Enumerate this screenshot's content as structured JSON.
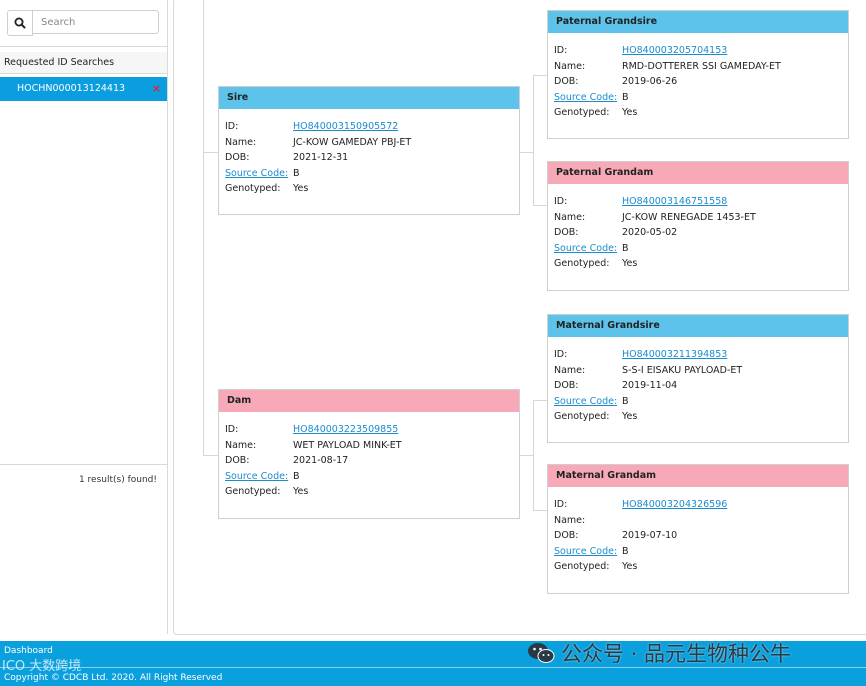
{
  "search": {
    "placeholder": "Search"
  },
  "sidebar": {
    "header": "Requested ID Searches",
    "results": [
      {
        "id": "HOCHN000013124413",
        "remove": "×"
      }
    ],
    "result_count": "1 result(s) found!"
  },
  "labels": {
    "id": "ID:",
    "name": "Name:",
    "dob": "DOB:",
    "source_code": "Source Code:",
    "genotyped": "Genotyped:"
  },
  "pedigree": {
    "sire": {
      "title": "Sire",
      "id": "HO840003150905572",
      "name": "JC-KOW GAMEDAY PBJ-ET",
      "dob": "2021-12-31",
      "source_code": "B",
      "genotyped": "Yes"
    },
    "dam": {
      "title": "Dam",
      "id": "HO840003223509855",
      "name": "WET PAYLOAD MINK-ET",
      "dob": "2021-08-17",
      "source_code": "B",
      "genotyped": "Yes"
    },
    "paternal_grandsire": {
      "title": "Paternal Grandsire",
      "id": "HO840003205704153",
      "name": "RMD-DOTTERER SSI GAMEDAY-ET",
      "dob": "2019-06-26",
      "source_code": "B",
      "genotyped": "Yes"
    },
    "paternal_grandam": {
      "title": "Paternal Grandam",
      "id": "HO840003146751558",
      "name": "JC-KOW RENEGADE 1453-ET",
      "dob": "2020-05-02",
      "source_code": "B",
      "genotyped": "Yes"
    },
    "maternal_grandsire": {
      "title": "Maternal Grandsire",
      "id": "HO840003211394853",
      "name": "S-S-I EISAKU PAYLOAD-ET",
      "dob": "2019-11-04",
      "source_code": "B",
      "genotyped": "Yes"
    },
    "maternal_grandam": {
      "title": "Maternal Grandam",
      "id": "HO840003204326596",
      "name": "",
      "dob": "2019-07-10",
      "source_code": "B",
      "genotyped": "Yes"
    }
  },
  "footer": {
    "dashboard": "Dashboard",
    "copyright": "Copyright © CDCB Ltd. 2020. All Right Reserved"
  },
  "watermarks": {
    "left": "ICO 大数跨境",
    "right": "公众号 · 品元生物种公牛"
  },
  "colors": {
    "accent": "#0aa0de",
    "male_header": "#5dc3ea",
    "female_header": "#f7a9b8",
    "link": "#1a8ccf",
    "remove": "#e0242c"
  }
}
